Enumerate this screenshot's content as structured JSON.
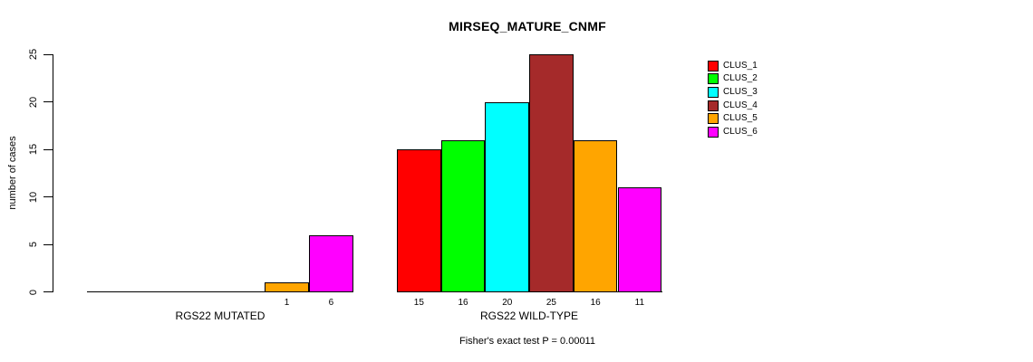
{
  "chart_data": {
    "type": "bar",
    "title": "MIRSEQ_MATURE_CNMF",
    "ylabel": "number of cases",
    "xlabel": "",
    "ylim": [
      0,
      25
    ],
    "yticks": [
      0,
      5,
      10,
      15,
      20,
      25
    ],
    "grid": false,
    "legend_position": "right-top",
    "categories": [
      "RGS22 MUTATED",
      "RGS22 WILD-TYPE"
    ],
    "series": [
      {
        "name": "CLUS_1",
        "color": "#FF0000",
        "values": [
          0,
          15
        ]
      },
      {
        "name": "CLUS_2",
        "color": "#00FF00",
        "values": [
          0,
          16
        ]
      },
      {
        "name": "CLUS_3",
        "color": "#00FFFF",
        "values": [
          0,
          20
        ]
      },
      {
        "name": "CLUS_4",
        "color": "#A52A2A",
        "values": [
          0,
          25
        ]
      },
      {
        "name": "CLUS_5",
        "color": "#FFA500",
        "values": [
          1,
          16
        ]
      },
      {
        "name": "CLUS_6",
        "color": "#FF00FF",
        "values": [
          6,
          11
        ]
      }
    ],
    "bar_value_labels": {
      "shown_for_nonzero_only": true,
      "group_0": [
        "1",
        "6"
      ],
      "group_1": [
        "15",
        "16",
        "20",
        "25",
        "16",
        "11"
      ]
    },
    "annotation": "Fisher's exact test P = 0.00011"
  }
}
